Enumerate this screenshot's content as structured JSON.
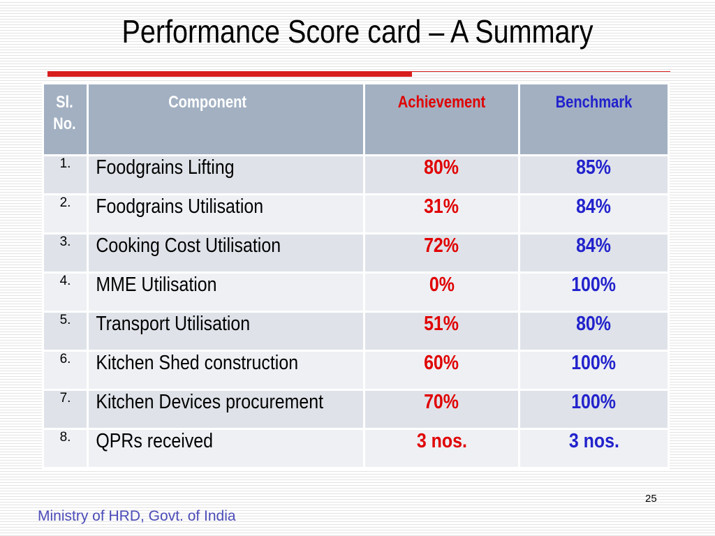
{
  "slide": {
    "title": "Performance Score card – A Summary",
    "page_number": "25",
    "footer": "Ministry of HRD, Govt. of India"
  },
  "table": {
    "headers": {
      "sl_no": "Sl. No.",
      "component": "Component",
      "achievement": "Achievement",
      "benchmark": "Benchmark"
    },
    "rows": [
      {
        "sl": "1.",
        "component": "Foodgrains Lifting",
        "achievement": "80%",
        "benchmark": "85%"
      },
      {
        "sl": "2.",
        "component": "Foodgrains Utilisation",
        "achievement": "31%",
        "benchmark": "84%"
      },
      {
        "sl": "3.",
        "component": "Cooking Cost Utilisation",
        "achievement": "72%",
        "benchmark": "84%"
      },
      {
        "sl": "4.",
        "component": "MME Utilisation",
        "achievement": "0%",
        "benchmark": "100%"
      },
      {
        "sl": "5.",
        "component": "Transport Utilisation",
        "achievement": "51%",
        "benchmark": "80%"
      },
      {
        "sl": "6.",
        "component": "Kitchen Shed construction",
        "achievement": "60%",
        "benchmark": "100%"
      },
      {
        "sl": "7.",
        "component": "Kitchen Devices procurement",
        "achievement": "70%",
        "benchmark": "100%"
      },
      {
        "sl": "8.",
        "component": "QPRs received",
        "achievement": "3 nos.",
        "benchmark": "3 nos."
      }
    ]
  },
  "colors": {
    "accent_rule": "#d81d1d",
    "header_bg": "#a2b0c2",
    "achievement": "#e00000",
    "benchmark": "#2222cc",
    "footer": "#4b4bb8"
  }
}
